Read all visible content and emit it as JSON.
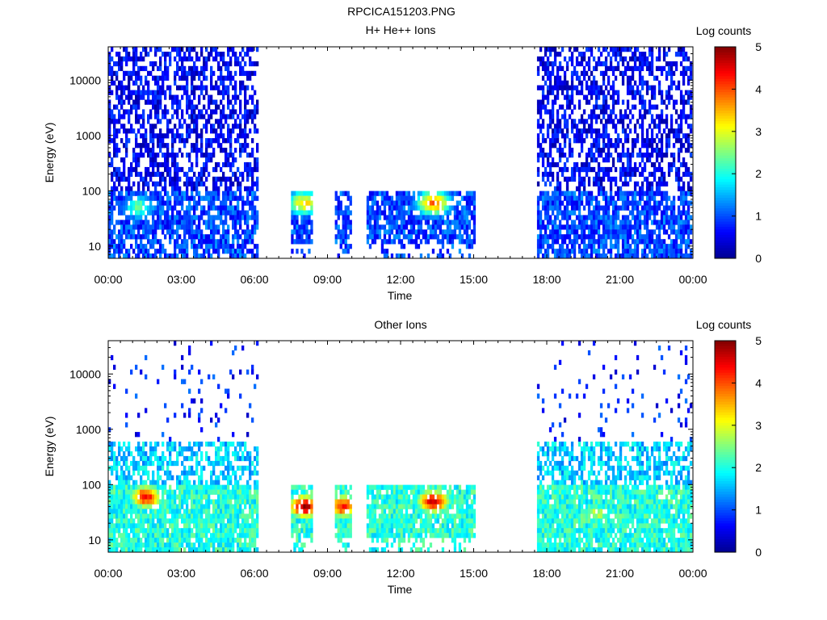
{
  "figure": {
    "title": "RPCICA151203.PNG"
  },
  "colorscale": {
    "stops": [
      "#00008f",
      "#0000ff",
      "#0080ff",
      "#00ffff",
      "#80ff80",
      "#ffff00",
      "#ff8000",
      "#ff0000",
      "#800000"
    ]
  },
  "chart_data": [
    {
      "type": "heatmap",
      "title": "H+ He++ Ions",
      "xlabel": "Time",
      "ylabel": "Energy (eV)",
      "x_ticks": [
        "00:00",
        "03:00",
        "06:00",
        "09:00",
        "12:00",
        "15:00",
        "18:00",
        "21:00",
        "00:00"
      ],
      "x_range_hours": [
        0,
        24
      ],
      "y_scale": "log",
      "y_range": [
        6,
        40000
      ],
      "y_ticks": [
        10,
        100,
        1000,
        10000
      ],
      "y_tick_labels": [
        "10",
        "100",
        "1000",
        "10000"
      ],
      "colorbar": {
        "label": "Log counts",
        "range": [
          0,
          5
        ],
        "ticks": [
          "0",
          "1",
          "2",
          "3",
          "4",
          "5"
        ]
      },
      "data_intervals_hours": [
        [
          0.0,
          6.1
        ],
        [
          7.5,
          8.3
        ],
        [
          9.3,
          9.9
        ],
        [
          10.6,
          15.0
        ],
        [
          17.6,
          23.9
        ]
      ],
      "description_points": [
        {
          "t_h": 1.2,
          "energy_ev": 50,
          "log_counts": 2.0
        },
        {
          "t_h": 8.0,
          "energy_ev": 60,
          "log_counts": 3.0
        },
        {
          "t_h": 13.3,
          "energy_ev": 60,
          "log_counts": 3.5
        }
      ]
    },
    {
      "type": "heatmap",
      "title": "Other Ions",
      "xlabel": "Time",
      "ylabel": "Energy (eV)",
      "x_ticks": [
        "00:00",
        "03:00",
        "06:00",
        "09:00",
        "12:00",
        "15:00",
        "18:00",
        "21:00",
        "00:00"
      ],
      "x_range_hours": [
        0,
        24
      ],
      "y_scale": "log",
      "y_range": [
        6,
        40000
      ],
      "y_ticks": [
        10,
        100,
        1000,
        10000
      ],
      "y_tick_labels": [
        "10",
        "100",
        "1000",
        "10000"
      ],
      "colorbar": {
        "label": "Log counts",
        "range": [
          0,
          5
        ],
        "ticks": [
          "0",
          "1",
          "2",
          "3",
          "4",
          "5"
        ]
      },
      "data_intervals_hours": [
        [
          0.0,
          6.1
        ],
        [
          7.5,
          8.3
        ],
        [
          9.3,
          9.9
        ],
        [
          10.6,
          15.0
        ],
        [
          17.6,
          23.9
        ]
      ],
      "description_points": [
        {
          "t_h": 1.5,
          "energy_ev": 60,
          "log_counts": 4.0
        },
        {
          "t_h": 8.0,
          "energy_ev": 40,
          "log_counts": 4.5
        },
        {
          "t_h": 9.6,
          "energy_ev": 40,
          "log_counts": 4.0
        },
        {
          "t_h": 13.3,
          "energy_ev": 50,
          "log_counts": 4.3
        },
        {
          "t_h": 20.0,
          "energy_ev": 30,
          "log_counts": 2.5
        }
      ]
    }
  ]
}
